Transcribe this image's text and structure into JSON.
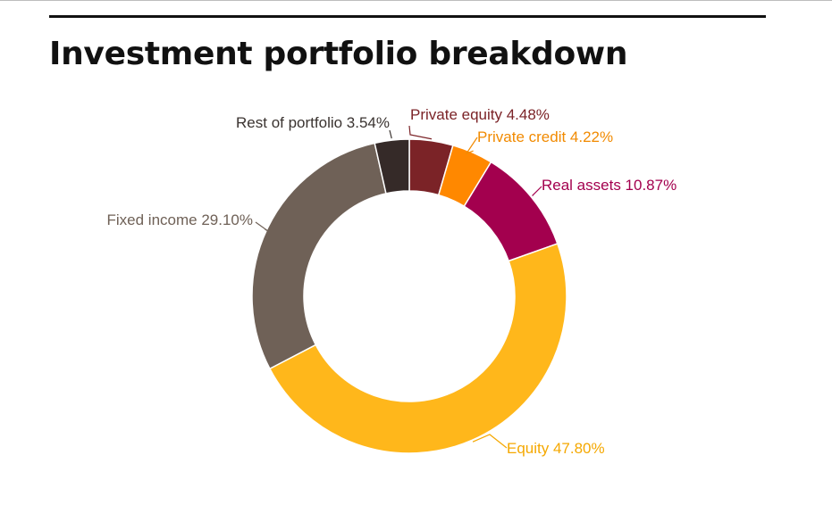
{
  "page": {
    "title": "Investment portfolio breakdown"
  },
  "chart_data": {
    "type": "pie",
    "donut": true,
    "title": "Investment portfolio breakdown",
    "slices": [
      {
        "label": "Private equity",
        "value": 4.48,
        "display": "Private equity 4.48%",
        "color": "#7b2327"
      },
      {
        "label": "Private credit",
        "value": 4.22,
        "display": "Private credit 4.22%",
        "color": "#ff8800"
      },
      {
        "label": "Real assets",
        "value": 10.87,
        "display": "Real assets 10.87%",
        "color": "#a3004e"
      },
      {
        "label": "Equity",
        "value": 47.8,
        "display": "Equity 47.80%",
        "color": "#ffb71b"
      },
      {
        "label": "Fixed income",
        "value": 29.1,
        "display": "Fixed income 29.10%",
        "color": "#6f6157"
      },
      {
        "label": "Rest of portfolio",
        "value": 3.54,
        "display": "Rest of portfolio 3.54%",
        "color": "#352a28"
      }
    ],
    "label_colors": {
      "Private equity": "#7b2327",
      "Private credit": "#f18a00",
      "Real assets": "#a3004e",
      "Equity": "#f5a800",
      "Fixed income": "#6f6157",
      "Rest of portfolio": "#3a3330"
    }
  }
}
